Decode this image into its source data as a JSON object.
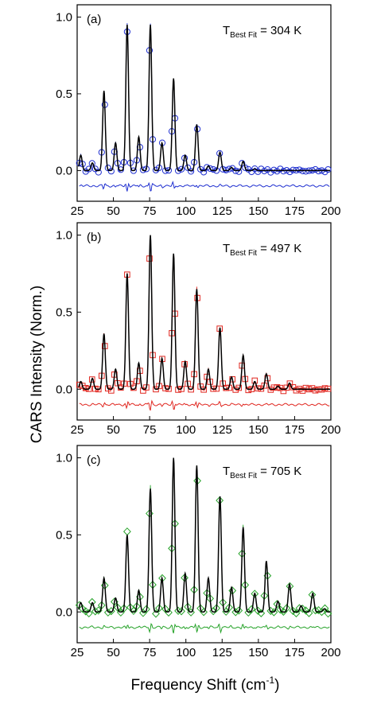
{
  "figure": {
    "ylabel": "CARS Intensity (Norm.)",
    "xlabel_main": "Frequency Shift (cm",
    "xlabel_sup": "-1",
    "xlabel_close": ")"
  },
  "chart_data": [
    {
      "type": "line",
      "panel": "(a)",
      "temp_prefix": "T",
      "temp_sub": "Best Fit",
      "temp_value": "= 304 K",
      "color": "#1f2fd0",
      "marker": "circle",
      "xlim": [
        25,
        200
      ],
      "ylim": [
        -0.2,
        1.08
      ],
      "xticks": [
        "25",
        "50",
        "75",
        "100",
        "125",
        "150",
        "175",
        "200"
      ],
      "yticks": [
        "0.0",
        "0.5",
        "1.0"
      ],
      "peaks_x": [
        27.5,
        35.5,
        43.5,
        51.5,
        59.5,
        67.5,
        75.5,
        83.5,
        91.5,
        99.5,
        107.5,
        115.5,
        123.5,
        131.5,
        139.5,
        147.5
      ],
      "peaks_y": [
        0.1,
        0.05,
        0.52,
        0.18,
        0.95,
        0.22,
        0.95,
        0.18,
        0.6,
        0.1,
        0.3,
        0.03,
        0.12,
        0.02,
        0.06,
        0.01
      ],
      "residual_offset": -0.1
    },
    {
      "type": "line",
      "panel": "(b)",
      "temp_prefix": "T",
      "temp_sub": "Best Fit",
      "temp_value": "= 497 K",
      "color": "#e0261f",
      "marker": "square",
      "xlim": [
        25,
        200
      ],
      "ylim": [
        -0.2,
        1.08
      ],
      "xticks": [
        "25",
        "50",
        "75",
        "100",
        "125",
        "150",
        "175",
        "200"
      ],
      "yticks": [
        "0.0",
        "0.5",
        "1.0"
      ],
      "peaks_x": [
        27.5,
        35.5,
        43.5,
        51.5,
        59.5,
        67.5,
        75.5,
        83.5,
        91.5,
        99.5,
        107.5,
        115.5,
        123.5,
        131.5,
        139.5,
        147.5,
        155.5,
        163.5,
        171.5
      ],
      "peaks_y": [
        0.05,
        0.07,
        0.36,
        0.13,
        0.75,
        0.17,
        1.0,
        0.2,
        0.88,
        0.18,
        0.65,
        0.13,
        0.4,
        0.08,
        0.22,
        0.05,
        0.1,
        0.02,
        0.04
      ],
      "residual_offset": -0.1
    },
    {
      "type": "line",
      "panel": "(c)",
      "temp_prefix": "T",
      "temp_sub": "Best Fit",
      "temp_value": "= 705 K",
      "color": "#27a32a",
      "marker": "diamond",
      "xlim": [
        25,
        200
      ],
      "ylim": [
        -0.2,
        1.08
      ],
      "xticks": [
        "25",
        "50",
        "75",
        "100",
        "125",
        "150",
        "175",
        "200"
      ],
      "yticks": [
        "0.0",
        "0.5",
        "1.0"
      ],
      "peaks_x": [
        27.5,
        35.5,
        43.5,
        51.5,
        59.5,
        67.5,
        75.5,
        83.5,
        91.5,
        99.5,
        107.5,
        115.5,
        123.5,
        131.5,
        139.5,
        147.5,
        155.5,
        163.5,
        171.5,
        179.5,
        187.5,
        195.5
      ],
      "peaks_y": [
        0.06,
        0.06,
        0.22,
        0.09,
        0.5,
        0.14,
        0.8,
        0.22,
        1.0,
        0.25,
        0.95,
        0.22,
        0.75,
        0.16,
        0.55,
        0.12,
        0.33,
        0.07,
        0.18,
        0.04,
        0.12,
        0.02
      ],
      "residual_offset": -0.1
    }
  ]
}
